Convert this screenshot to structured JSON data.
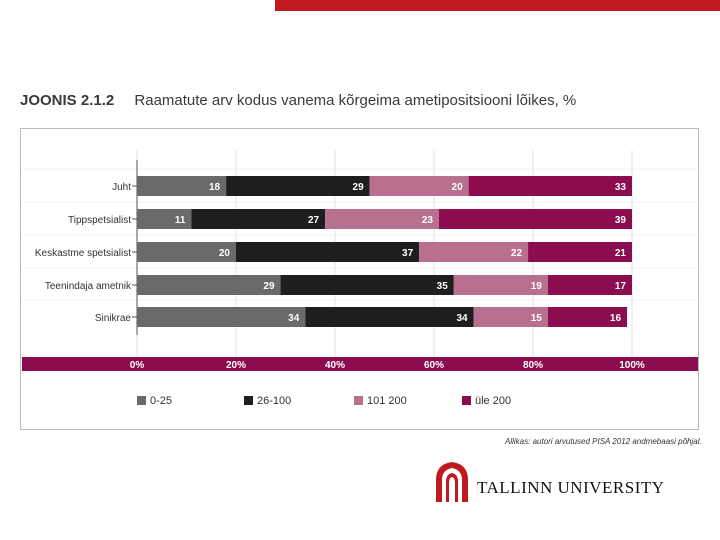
{
  "page": {
    "title_num": "JOONIS 2.1.2",
    "title_text": "Raamatute arv kodus vanema kõrgeima ametipositsiooni lõikes, %",
    "source": "Allikas: autori arvutused PISA 2012 andmebaasi põhjal.",
    "logo_text": "TALLINN UNIVERSITY"
  },
  "colors": {
    "accent": "#c0191f",
    "axis_band": "#8c0d4f",
    "series": [
      "#6a6a6a",
      "#1e1e1e",
      "#b9708f",
      "#8c0d4f"
    ]
  },
  "chart_data": {
    "type": "bar",
    "orientation": "horizontal",
    "stacked": true,
    "title": "Raamatute arv kodus vanema kõrgeima ametipositsiooni lõikes, %",
    "categories": [
      "Juht",
      "Tippspetsialist",
      "Keskastme spetsialist",
      "Teenindaja ametnik",
      "Sinikrae"
    ],
    "series": [
      {
        "name": "0-25",
        "values": [
          18,
          11,
          20,
          29,
          34
        ]
      },
      {
        "name": "26-100",
        "values": [
          29,
          27,
          37,
          35,
          34
        ]
      },
      {
        "name": "101 200",
        "values": [
          20,
          23,
          22,
          19,
          15
        ]
      },
      {
        "name": "üle 200",
        "values": [
          33,
          39,
          21,
          17,
          16
        ]
      }
    ],
    "xlim": [
      0,
      100
    ],
    "xticks": [
      "0%",
      "20%",
      "40%",
      "60%",
      "80%",
      "100%"
    ],
    "grid": true,
    "legend": "bottom"
  }
}
